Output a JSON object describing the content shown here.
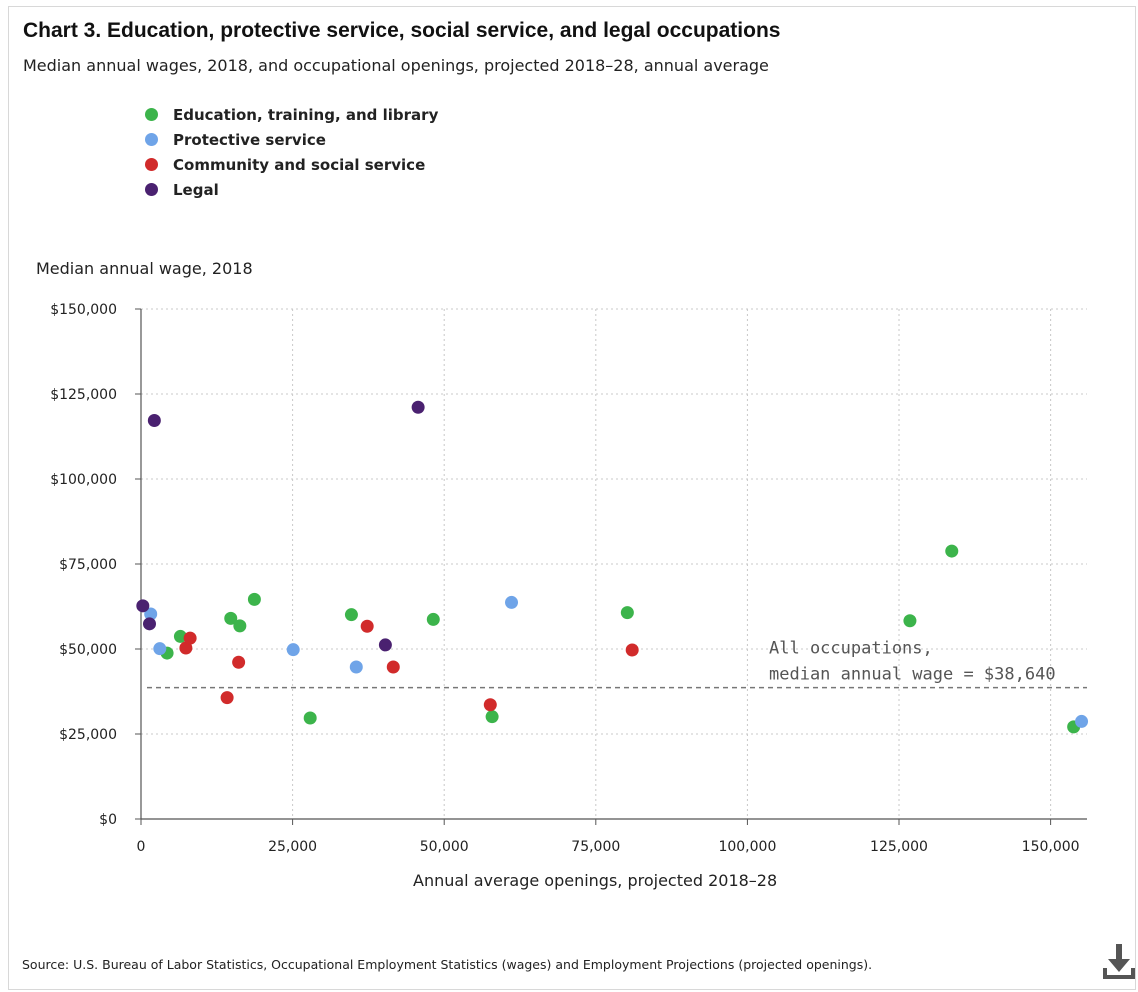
{
  "title": "Chart 3. Education, protective service, social service, and legal occupations",
  "subtitle": "Median annual wages, 2018, and occupational openings, projected 2018–28, annual average",
  "source": "Source: U.S. Bureau of Labor Statistics, Occupational Employment Statistics (wages) and Employment Projections (projected openings).",
  "download_icon": "download-icon",
  "chart_data": {
    "type": "scatter",
    "xlabel": "Annual average openings, projected 2018–28",
    "ylabel": "Median annual wage, 2018",
    "xlim": [
      0,
      156000
    ],
    "ylim": [
      0,
      150000
    ],
    "x_ticks": [
      0,
      25000,
      50000,
      75000,
      100000,
      125000,
      150000
    ],
    "x_tick_labels": [
      "0",
      "25,000",
      "50,000",
      "75,000",
      "100,000",
      "125,000",
      "150,000"
    ],
    "y_ticks": [
      0,
      25000,
      50000,
      75000,
      100000,
      125000,
      150000
    ],
    "y_tick_labels": [
      "$0",
      "$25,000",
      "$50,000",
      "$75,000",
      "$100,000",
      "$125,000",
      "$150,000"
    ],
    "grid": "dotted vertical and horizontal",
    "legend_position": "top-left",
    "reference_line": {
      "y": 38640,
      "style": "dashed",
      "label_lines": [
        "All occupations,",
        "median annual wage = $38,640"
      ]
    },
    "series": [
      {
        "name": "Education, training, and library",
        "color": "#3cb44b",
        "points": [
          {
            "x": 4300,
            "y": 48800
          },
          {
            "x": 6500,
            "y": 53700
          },
          {
            "x": 14800,
            "y": 59000
          },
          {
            "x": 16300,
            "y": 56800
          },
          {
            "x": 18700,
            "y": 64600
          },
          {
            "x": 27900,
            "y": 29700
          },
          {
            "x": 34700,
            "y": 60100
          },
          {
            "x": 48200,
            "y": 58700
          },
          {
            "x": 57900,
            "y": 30100
          },
          {
            "x": 80200,
            "y": 60700
          },
          {
            "x": 126800,
            "y": 58300
          },
          {
            "x": 133700,
            "y": 78800
          },
          {
            "x": 153800,
            "y": 27100
          }
        ]
      },
      {
        "name": "Protective service",
        "color": "#6fa4e8",
        "points": [
          {
            "x": 1600,
            "y": 60300
          },
          {
            "x": 3100,
            "y": 50100
          },
          {
            "x": 25100,
            "y": 49800
          },
          {
            "x": 35500,
            "y": 44700
          },
          {
            "x": 61100,
            "y": 63700
          },
          {
            "x": 155100,
            "y": 28700
          }
        ]
      },
      {
        "name": "Community and social service",
        "color": "#d12b2b",
        "points": [
          {
            "x": 7400,
            "y": 50300
          },
          {
            "x": 8100,
            "y": 53200
          },
          {
            "x": 14200,
            "y": 35700
          },
          {
            "x": 16100,
            "y": 46100
          },
          {
            "x": 37300,
            "y": 56700
          },
          {
            "x": 41600,
            "y": 44700
          },
          {
            "x": 57600,
            "y": 33600
          },
          {
            "x": 81000,
            "y": 49700
          }
        ]
      },
      {
        "name": "Legal",
        "color": "#4a2170",
        "points": [
          {
            "x": 300,
            "y": 62700
          },
          {
            "x": 1400,
            "y": 57400
          },
          {
            "x": 2200,
            "y": 117200
          },
          {
            "x": 40300,
            "y": 51200
          },
          {
            "x": 45700,
            "y": 121100
          }
        ]
      }
    ]
  }
}
